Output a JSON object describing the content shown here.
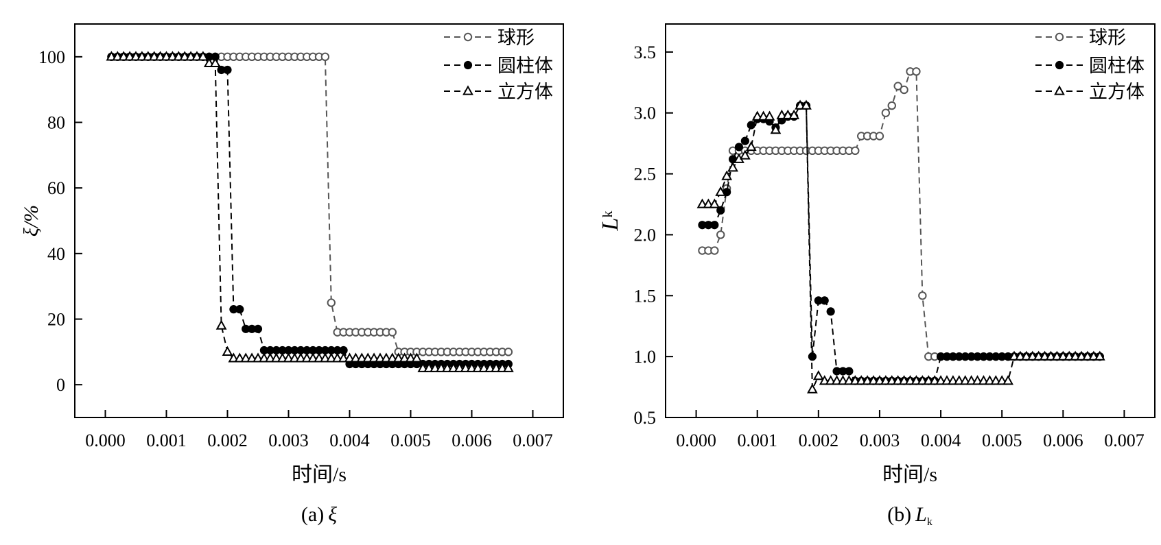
{
  "colors": {
    "sphere": "#555555",
    "cylinder": "#000000",
    "cube": "#000000",
    "axis": "#000000"
  },
  "chart_data": [
    {
      "type": "line",
      "panel": "a",
      "caption_prefix": "(a)",
      "caption_symbol": "ξ",
      "xlabel": "时间/s",
      "ylabel": "ξ/%",
      "xlim": [
        -0.0005,
        0.0075
      ],
      "ylim": [
        -10,
        110
      ],
      "xticks": [
        0.0,
        0.001,
        0.002,
        0.003,
        0.004,
        0.005,
        0.006,
        0.007
      ],
      "xtick_labels": [
        "0.000",
        "0.001",
        "0.002",
        "0.003",
        "0.004",
        "0.005",
        "0.006",
        "0.007"
      ],
      "yticks": [
        0,
        20,
        40,
        60,
        80,
        100
      ],
      "ytick_labels": [
        "0",
        "20",
        "40",
        "60",
        "80",
        "100"
      ],
      "legend_position": "top-right",
      "grid": false,
      "x_start": 0.0001,
      "x_step": 0.0001,
      "n_points": 66,
      "series": [
        {
          "name": "球形",
          "marker": "open-circle",
          "color": "#555555",
          "values": [
            100,
            100,
            100,
            100,
            100,
            100,
            100,
            100,
            100,
            100,
            100,
            100,
            100,
            100,
            100,
            100,
            100,
            100,
            100,
            100,
            100,
            100,
            100,
            100,
            100,
            100,
            100,
            100,
            100,
            100,
            100,
            100,
            100,
            100,
            100,
            100,
            25,
            16,
            16,
            16,
            16,
            16,
            16,
            16,
            16,
            16,
            16,
            10,
            10,
            10,
            10,
            10,
            10,
            10,
            10,
            10,
            10,
            10,
            10,
            10,
            10,
            10,
            10,
            10,
            10,
            10
          ]
        },
        {
          "name": "圆柱体",
          "marker": "filled-circle",
          "color": "#000000",
          "values": [
            100,
            100,
            100,
            100,
            100,
            100,
            100,
            100,
            100,
            100,
            100,
            100,
            100,
            100,
            100,
            100,
            100,
            100,
            96,
            96,
            23,
            23,
            17,
            17,
            17,
            10.5,
            10.5,
            10.5,
            10.5,
            10.5,
            10.5,
            10.5,
            10.5,
            10.5,
            10.5,
            10.5,
            10.5,
            10.5,
            10.5,
            6.3,
            6.3,
            6.3,
            6.3,
            6.3,
            6.3,
            6.3,
            6.3,
            6.3,
            6.3,
            6.3,
            6.3,
            6.3,
            6.3,
            6.3,
            6.3,
            6.3,
            6.3,
            6.3,
            6.3,
            6.3,
            6.3,
            6.3,
            6.3,
            6.3,
            6.3,
            6.3
          ]
        },
        {
          "name": "立方体",
          "marker": "open-triangle",
          "color": "#000000",
          "values": [
            100,
            100,
            100,
            100,
            100,
            100,
            100,
            100,
            100,
            100,
            100,
            100,
            100,
            100,
            100,
            100,
            98,
            98,
            18,
            10,
            8,
            8,
            8,
            8,
            8,
            8,
            8,
            8,
            8,
            8,
            8,
            8,
            8,
            8,
            8,
            8,
            8,
            8,
            8,
            8,
            8,
            8,
            8,
            8,
            8,
            8,
            8,
            8,
            8,
            8,
            8,
            5,
            5,
            5,
            5,
            5,
            5,
            5,
            5,
            5,
            5,
            5,
            5,
            5,
            5,
            5
          ]
        }
      ]
    },
    {
      "type": "line",
      "panel": "b",
      "caption_prefix": "(b)",
      "caption_symbol": "L",
      "caption_subscript": "k",
      "xlabel": "时间/s",
      "ylabel": "L",
      "ylabel_subscript": "k",
      "xlim": [
        -0.0005,
        0.0075
      ],
      "ylim": [
        0.5,
        3.73
      ],
      "xticks": [
        0.0,
        0.001,
        0.002,
        0.003,
        0.004,
        0.005,
        0.006,
        0.007
      ],
      "xtick_labels": [
        "0.000",
        "0.001",
        "0.002",
        "0.003",
        "0.004",
        "0.005",
        "0.006",
        "0.007"
      ],
      "yticks": [
        0.5,
        1.0,
        1.5,
        2.0,
        2.5,
        3.0,
        3.5
      ],
      "ytick_labels": [
        "0.5",
        "1.0",
        "1.5",
        "2.0",
        "2.5",
        "3.0",
        "3.5"
      ],
      "legend_position": "top-right",
      "grid": false,
      "x_start": 0.0001,
      "x_step": 0.0001,
      "n_points": 66,
      "series": [
        {
          "name": "球形",
          "marker": "open-circle",
          "color": "#555555",
          "values": [
            1.87,
            1.87,
            1.87,
            2.0,
            2.38,
            2.69,
            2.69,
            2.69,
            2.69,
            2.69,
            2.69,
            2.69,
            2.69,
            2.69,
            2.69,
            2.69,
            2.69,
            2.69,
            2.69,
            2.69,
            2.69,
            2.69,
            2.69,
            2.69,
            2.69,
            2.69,
            2.81,
            2.81,
            2.81,
            2.81,
            3.0,
            3.06,
            3.22,
            3.19,
            3.34,
            3.34,
            1.5,
            1,
            1,
            1,
            1,
            1,
            1,
            1,
            1,
            1,
            1,
            1,
            1,
            1,
            1,
            1,
            1,
            1,
            1,
            1,
            1,
            1,
            1,
            1,
            1,
            1,
            1,
            1,
            1,
            1
          ]
        },
        {
          "name": "圆柱体",
          "marker": "filled-circle",
          "color": "#000000",
          "values": [
            2.08,
            2.08,
            2.08,
            2.2,
            2.35,
            2.62,
            2.72,
            2.77,
            2.9,
            2.95,
            2.95,
            2.93,
            2.88,
            2.94,
            2.97,
            2.97,
            3.06,
            3.06,
            1.0,
            1.46,
            1.46,
            1.37,
            0.88,
            0.88,
            0.88,
            0.8,
            0.8,
            0.8,
            0.8,
            0.8,
            0.8,
            0.8,
            0.8,
            0.8,
            0.8,
            0.8,
            0.8,
            0.8,
            0.8,
            1,
            1,
            1,
            1,
            1,
            1,
            1,
            1,
            1,
            1,
            1,
            1,
            1,
            1,
            1,
            1,
            1,
            1,
            1,
            1,
            1,
            1,
            1,
            1,
            1,
            1,
            1
          ]
        },
        {
          "name": "立方体",
          "marker": "open-triangle",
          "color": "#000000",
          "values": [
            2.25,
            2.25,
            2.25,
            2.35,
            2.48,
            2.55,
            2.62,
            2.65,
            2.72,
            2.97,
            2.97,
            2.97,
            2.86,
            2.98,
            2.98,
            2.98,
            3.06,
            3.06,
            0.73,
            0.84,
            0.8,
            0.8,
            0.8,
            0.8,
            0.8,
            0.8,
            0.8,
            0.8,
            0.8,
            0.8,
            0.8,
            0.8,
            0.8,
            0.8,
            0.8,
            0.8,
            0.8,
            0.8,
            0.8,
            0.8,
            0.8,
            0.8,
            0.8,
            0.8,
            0.8,
            0.8,
            0.8,
            0.8,
            0.8,
            0.8,
            0.8,
            1,
            1,
            1,
            1,
            1,
            1,
            1,
            1,
            1,
            1,
            1,
            1,
            1,
            1,
            1
          ]
        }
      ]
    }
  ]
}
